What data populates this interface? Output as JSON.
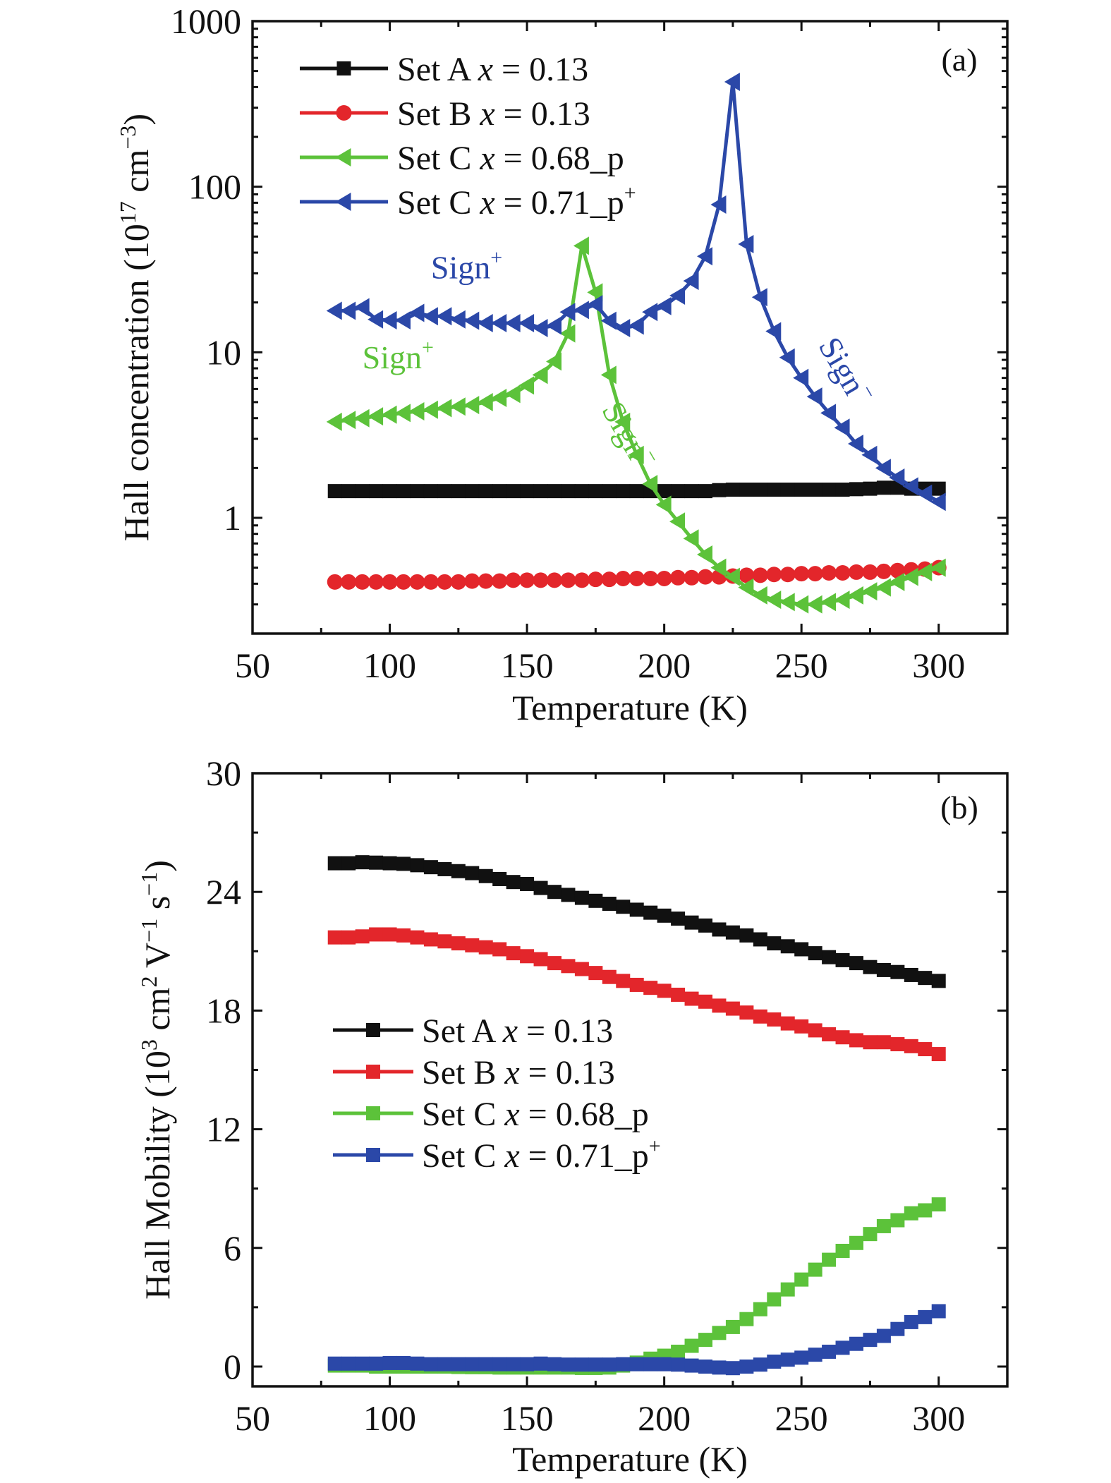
{
  "chart_data": [
    {
      "id": "a",
      "type": "line",
      "panel_label": "(a)",
      "title": "",
      "xlabel": "Temperature (K)",
      "ylabel": "Hall concentration (10^17 cm^-3)",
      "ylabel_parts": {
        "main": "Hall concentration (10",
        "sup1": "17",
        "mid": " cm",
        "sup2": "−3",
        "end": ")"
      },
      "xlim": [
        50,
        325
      ],
      "ylim": [
        0.2,
        1000
      ],
      "yscale": "log",
      "xticks": [
        50,
        100,
        150,
        200,
        250,
        300
      ],
      "xtick_labels": [
        "50",
        "100",
        "150",
        "200",
        "250",
        "300"
      ],
      "yticks": [
        1,
        10,
        100,
        1000
      ],
      "ytick_labels": [
        "1",
        "10",
        "100",
        "1000"
      ],
      "grid": false,
      "legend_position": "top-left",
      "x": [
        80,
        85,
        90,
        95,
        100,
        105,
        110,
        115,
        120,
        125,
        130,
        135,
        140,
        145,
        150,
        155,
        160,
        165,
        170,
        175,
        180,
        185,
        190,
        195,
        200,
        205,
        210,
        215,
        220,
        225,
        230,
        235,
        240,
        245,
        250,
        255,
        260,
        265,
        270,
        275,
        280,
        285,
        290,
        295,
        300
      ],
      "series": [
        {
          "name": "Set A x = 0.13",
          "legend": {
            "prefix": "Set A ",
            "var": "x",
            "suffix": " = 0.13",
            "sup": ""
          },
          "color": "#111111",
          "marker": "square",
          "line": false,
          "values": [
            1.45,
            1.45,
            1.45,
            1.45,
            1.45,
            1.45,
            1.45,
            1.45,
            1.45,
            1.45,
            1.45,
            1.45,
            1.45,
            1.45,
            1.45,
            1.45,
            1.45,
            1.45,
            1.45,
            1.45,
            1.45,
            1.45,
            1.45,
            1.45,
            1.45,
            1.45,
            1.45,
            1.45,
            1.47,
            1.48,
            1.48,
            1.48,
            1.48,
            1.48,
            1.48,
            1.48,
            1.48,
            1.48,
            1.49,
            1.5,
            1.52,
            1.52,
            1.5,
            1.5,
            1.5
          ]
        },
        {
          "name": "Set B x = 0.13",
          "legend": {
            "prefix": "Set B ",
            "var": "x",
            "suffix": " = 0.13",
            "sup": ""
          },
          "color": "#e3262b",
          "marker": "circle",
          "line": false,
          "values": [
            0.41,
            0.41,
            0.41,
            0.41,
            0.41,
            0.41,
            0.41,
            0.41,
            0.41,
            0.41,
            0.415,
            0.415,
            0.415,
            0.42,
            0.42,
            0.42,
            0.42,
            0.42,
            0.42,
            0.425,
            0.425,
            0.43,
            0.43,
            0.43,
            0.43,
            0.435,
            0.435,
            0.44,
            0.44,
            0.445,
            0.45,
            0.45,
            0.455,
            0.455,
            0.46,
            0.46,
            0.465,
            0.465,
            0.47,
            0.47,
            0.475,
            0.48,
            0.485,
            0.49,
            0.5
          ]
        },
        {
          "name": "Set C x = 0.68_p",
          "legend": {
            "prefix": "Set C ",
            "var": "x",
            "suffix": " = 0.68_p",
            "sup": ""
          },
          "color": "#5cc23a",
          "marker": "triangle-left",
          "line": true,
          "values": [
            3.8,
            3.9,
            4.0,
            4.1,
            4.2,
            4.3,
            4.4,
            4.5,
            4.6,
            4.7,
            4.8,
            5.0,
            5.3,
            5.6,
            6.3,
            7.3,
            8.8,
            13,
            44,
            23,
            7.3,
            3.8,
            2.4,
            1.6,
            1.2,
            0.95,
            0.75,
            0.6,
            0.5,
            0.44,
            0.38,
            0.34,
            0.32,
            0.31,
            0.3,
            0.3,
            0.31,
            0.32,
            0.34,
            0.36,
            0.38,
            0.41,
            0.44,
            0.47,
            0.5
          ]
        },
        {
          "name": "Set C x = 0.71_p+",
          "legend": {
            "prefix": "Set C ",
            "var": "x",
            "suffix": " = 0.71_p",
            "sup": "+"
          },
          "color": "#2b48a8",
          "marker": "triangle-left",
          "line": true,
          "values": [
            17.8,
            17.8,
            18.7,
            15.8,
            15.6,
            15.6,
            17.3,
            16.5,
            16.5,
            15.8,
            15.5,
            15.0,
            15.0,
            15.0,
            15.0,
            14.0,
            14.5,
            17.5,
            18.0,
            19.5,
            15.5,
            14.0,
            14.5,
            17.5,
            19.0,
            22,
            27,
            38,
            78,
            430,
            45,
            21.5,
            13.4,
            9.3,
            7.0,
            5.4,
            4.3,
            3.5,
            2.8,
            2.4,
            2.0,
            1.75,
            1.55,
            1.4,
            1.25
          ]
        }
      ],
      "annotations": [
        {
          "text": "Sign",
          "sup": "+",
          "color": "#2b48a8",
          "at": {
            "x": 115,
            "y": 28
          },
          "rotation": 0
        },
        {
          "text": "Sign",
          "sup": "+",
          "color": "#5cc23a",
          "at": {
            "x": 90,
            "y": 8
          },
          "rotation": 0
        },
        {
          "text": "Sign",
          "sup": "−",
          "color": "#5cc23a",
          "at": {
            "x": 177,
            "y": 4.5
          },
          "rotation": 60
        },
        {
          "text": "Sign",
          "sup": "−",
          "color": "#2b48a8",
          "at": {
            "x": 256,
            "y": 11
          },
          "rotation": 60
        }
      ]
    },
    {
      "id": "b",
      "type": "scatter",
      "panel_label": "(b)",
      "title": "",
      "xlabel": "Temperature (K)",
      "ylabel": "Hall Mobility (10^3 cm^2 V^-1 s^-1)",
      "ylabel_parts": {
        "main": "Hall Mobility (10",
        "sup1": "3",
        "mid": " cm",
        "sup2": "2",
        "mid2": " V",
        "sup3": "−1",
        "mid3": " s",
        "sup4": "−1",
        "end": ")"
      },
      "xlim": [
        50,
        325
      ],
      "ylim": [
        -1,
        30
      ],
      "yscale": "linear",
      "xticks": [
        50,
        100,
        150,
        200,
        250,
        300
      ],
      "xtick_labels": [
        "50",
        "100",
        "150",
        "200",
        "250",
        "300"
      ],
      "yticks": [
        0,
        6,
        12,
        18,
        24,
        30
      ],
      "ytick_labels": [
        "0",
        "6",
        "12",
        "18",
        "24",
        "30"
      ],
      "grid": false,
      "legend_position": "center-left",
      "x": [
        80,
        85,
        90,
        95,
        100,
        105,
        110,
        115,
        120,
        125,
        130,
        135,
        140,
        145,
        150,
        155,
        160,
        165,
        170,
        175,
        180,
        185,
        190,
        195,
        200,
        205,
        210,
        215,
        220,
        225,
        230,
        235,
        240,
        245,
        250,
        255,
        260,
        265,
        270,
        275,
        280,
        285,
        290,
        295,
        300
      ],
      "series": [
        {
          "name": "Set A x = 0.13",
          "legend": {
            "prefix": "Set A ",
            "var": "x",
            "suffix": " = 0.13",
            "sup": ""
          },
          "color": "#111111",
          "marker": "square",
          "values": [
            25.45,
            25.45,
            25.5,
            25.48,
            25.45,
            25.42,
            25.35,
            25.25,
            25.15,
            25.05,
            24.95,
            24.8,
            24.65,
            24.5,
            24.4,
            24.2,
            24.0,
            23.85,
            23.7,
            23.55,
            23.4,
            23.25,
            23.1,
            22.95,
            22.8,
            22.65,
            22.45,
            22.3,
            22.1,
            21.95,
            21.8,
            21.6,
            21.4,
            21.25,
            21.1,
            20.9,
            20.7,
            20.55,
            20.4,
            20.2,
            20.05,
            19.95,
            19.8,
            19.65,
            19.5
          ]
        },
        {
          "name": "Set B x = 0.13",
          "legend": {
            "prefix": "Set B ",
            "var": "x",
            "suffix": " = 0.13",
            "sup": ""
          },
          "color": "#e3262b",
          "marker": "square",
          "values": [
            21.7,
            21.7,
            21.75,
            21.85,
            21.85,
            21.8,
            21.7,
            21.6,
            21.5,
            21.4,
            21.3,
            21.2,
            21.1,
            20.9,
            20.75,
            20.6,
            20.4,
            20.25,
            20.1,
            19.9,
            19.7,
            19.5,
            19.3,
            19.15,
            19.0,
            18.8,
            18.6,
            18.45,
            18.25,
            18.1,
            17.9,
            17.7,
            17.55,
            17.35,
            17.2,
            17.0,
            16.8,
            16.65,
            16.5,
            16.4,
            16.4,
            16.3,
            16.2,
            16.05,
            15.8
          ]
        },
        {
          "name": "Set C x = 0.68_p",
          "legend": {
            "prefix": "Set C ",
            "var": "x",
            "suffix": " = 0.68_p",
            "sup": ""
          },
          "color": "#5cc23a",
          "marker": "square",
          "values": [
            0.05,
            0.05,
            0.05,
            0.0,
            0.0,
            0.0,
            0.0,
            0.0,
            0.0,
            -0.02,
            -0.03,
            -0.03,
            -0.05,
            -0.05,
            -0.05,
            -0.05,
            -0.05,
            -0.05,
            -0.07,
            -0.07,
            -0.05,
            0.05,
            0.2,
            0.4,
            0.55,
            0.75,
            1.05,
            1.35,
            1.7,
            2.0,
            2.4,
            2.9,
            3.4,
            3.9,
            4.4,
            4.9,
            5.4,
            5.85,
            6.25,
            6.7,
            7.1,
            7.4,
            7.75,
            7.9,
            8.2
          ]
        },
        {
          "name": "Set C x = 0.71_p+",
          "legend": {
            "prefix": "Set C ",
            "var": "x",
            "suffix": " = 0.71_p",
            "sup": "+"
          },
          "color": "#2b48a8",
          "marker": "square",
          "values": [
            0.15,
            0.15,
            0.15,
            0.15,
            0.18,
            0.18,
            0.15,
            0.12,
            0.12,
            0.12,
            0.12,
            0.12,
            0.12,
            0.12,
            0.12,
            0.15,
            0.12,
            0.1,
            0.1,
            0.1,
            0.1,
            0.12,
            0.12,
            0.12,
            0.12,
            0.1,
            0.05,
            0.0,
            -0.05,
            -0.08,
            0.0,
            0.1,
            0.25,
            0.35,
            0.45,
            0.6,
            0.75,
            0.95,
            1.15,
            1.35,
            1.55,
            1.9,
            2.25,
            2.5,
            2.8
          ]
        }
      ]
    }
  ]
}
